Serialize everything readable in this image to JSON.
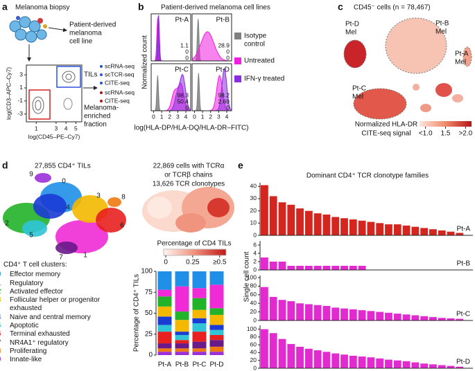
{
  "panels": {
    "a": {
      "letter": "a",
      "title": "Melanoma biopsy",
      "cell_line": [
        "Patient-derived",
        "melanoma",
        "cell line"
      ],
      "flow": {
        "ylabel": "log(CD3–APC–Cy7)",
        "xlabel": "log(CD45–PE–Cy7)",
        "xticks": [
          1,
          3,
          4,
          5
        ],
        "yticks": [
          -3,
          -1,
          1,
          3
        ],
        "xlim": [
          0,
          5.6
        ],
        "ylim": [
          -4.2,
          4.5
        ]
      },
      "tils": "TILs",
      "tils_assays": [
        "scRNA-seq",
        "scTCR-seq",
        "CITE-seq"
      ],
      "fraction": [
        "Melanoma-",
        "enriched",
        "fraction"
      ],
      "fraction_assays": [
        "scRNA-seq",
        "CITE-seq"
      ]
    },
    "b": {
      "letter": "b",
      "title": "Patient-derived melanoma cell lines",
      "ylabel": "Normalized count",
      "xlabel": "log(HLA-DP/HLA-DQ/HLA-DR–FITC)",
      "xticks": [
        0,
        1,
        2,
        3,
        4
      ],
      "xlim": [
        -0.3,
        4.6
      ],
      "legend": [
        {
          "lines": [
            "Isotype",
            "control"
          ],
          "color": "#808080"
        },
        {
          "lines": [
            "Untreated"
          ],
          "color": "#f01ee0"
        },
        {
          "lines": [
            "IFN-γ treated"
          ],
          "color": "#8b2be2"
        }
      ],
      "samples": [
        {
          "name": "Pt-A",
          "values": [
            1.1,
            0,
            0
          ]
        },
        {
          "name": "Pt-B",
          "values": [
            28.9,
            0,
            0
          ]
        },
        {
          "name": "Pt-C",
          "values": [
            98.3,
            50.4,
            0
          ]
        },
        {
          "name": "Pt-D",
          "values": [
            98.2,
            2.69,
            0
          ]
        }
      ]
    },
    "c": {
      "letter": "c",
      "title": "CD45⁻ cells (n = 78,467)",
      "clusters": [
        [
          "Pt-D",
          "Mel"
        ],
        [
          "Pt-B",
          "Mel"
        ],
        [
          "Pt-A",
          "Mel"
        ],
        [
          "Pt-C",
          "Mel"
        ]
      ],
      "colorbar": {
        "label": [
          "Normalized HLA-DR",
          "CITE-seq signal"
        ],
        "ticks": [
          {
            "value": 1.0,
            "label": "<1.0"
          },
          1.5,
          {
            "value": 2.0,
            "label": ">2.0"
          }
        ],
        "lim": [
          0.85,
          2.15
        ]
      }
    },
    "d": {
      "letter": "d",
      "umap_title": "27,855 CD4⁺ TILs",
      "tcr_text": [
        "22,869 cells with TCRα",
        "or TCRβ chains",
        "13,626 TCR clonotypes"
      ],
      "colorbar": {
        "label": "Percentage of CD4 TILs",
        "ticks": [
          0,
          0.25,
          {
            "value": 0.5,
            "label": "≥0.5"
          }
        ],
        "lim": [
          -0.02,
          0.56
        ]
      },
      "legend_title": "CD4⁺ T cell clusters:"
    },
    "e": {
      "letter": "e",
      "title": "Dominant CD4⁺ TCR clonotype families",
      "ylabel": "Single cell count"
    }
  },
  "chart_data": [
    {
      "type": "stacked_bar",
      "ylabel": "Percentage of CD4⁺ TILs",
      "categories": [
        "Pt-A",
        "Pt-B",
        "Pt-C",
        "Pt-D"
      ],
      "ylim": [
        0,
        100
      ],
      "yticks": [
        0,
        25,
        50,
        75,
        100
      ],
      "series": [
        {
          "id": 0,
          "name": "Effector memory",
          "color": "#1f8fe8",
          "values": [
            22,
            18,
            20,
            16
          ]
        },
        {
          "id": 1,
          "name": "Regulatory",
          "color": "#f02ad6",
          "values": [
            8,
            30,
            12,
            28
          ]
        },
        {
          "id": 2,
          "name": "Activated effector",
          "color": "#22b32a",
          "values": [
            12,
            10,
            14,
            8
          ]
        },
        {
          "id": 3,
          "name": "Follicular helper or progenitor exhausted",
          "color": "#f4b800",
          "values": [
            12,
            14,
            10,
            12
          ]
        },
        {
          "id": 4,
          "name": "Naive and central memory",
          "color": "#1a3bd4",
          "values": [
            10,
            4,
            6,
            6
          ]
        },
        {
          "id": 5,
          "name": "Apoptotic",
          "color": "#30c4d6",
          "values": [
            8,
            6,
            10,
            6
          ]
        },
        {
          "id": 6,
          "name": "Terminal exhausted",
          "color": "#e8201e",
          "values": [
            14,
            4,
            12,
            6
          ]
        },
        {
          "id": 7,
          "name": "NR4A1⁺ regulatory",
          "color": "#6a1a88",
          "values": [
            6,
            6,
            8,
            8
          ]
        },
        {
          "id": 8,
          "name": "Proliferating",
          "color": "#f07a12",
          "values": [
            4,
            4,
            4,
            6
          ]
        },
        {
          "id": 9,
          "name": "Innate-like",
          "color": "#9b30d8",
          "values": [
            4,
            4,
            4,
            4
          ]
        }
      ]
    },
    {
      "type": "bar",
      "name": "Pt-A",
      "color": "#d4261e",
      "ylim": [
        0,
        43
      ],
      "yticks": [
        0,
        10,
        20,
        30,
        40
      ],
      "values": [
        41,
        32,
        27,
        25,
        22,
        20,
        18,
        17,
        15,
        14,
        13,
        12,
        11,
        10,
        9,
        9,
        8,
        7,
        6,
        5,
        4,
        3,
        2
      ]
    },
    {
      "type": "bar",
      "name": "Pt-B",
      "color": "#e22ad0",
      "ylim": [
        0,
        7
      ],
      "yticks": [
        0,
        2,
        4,
        6
      ],
      "values": [
        3,
        2,
        2,
        1,
        1,
        1,
        1,
        1,
        1,
        1,
        1,
        1
      ]
    },
    {
      "type": "bar",
      "name": "Pt-C",
      "color": "#e22ad0",
      "ylim": [
        0,
        105
      ],
      "yticks": [
        0,
        20,
        40,
        60,
        80,
        100
      ],
      "values": [
        78,
        55,
        48,
        45,
        40,
        38,
        36,
        34,
        30,
        28,
        26,
        24,
        22,
        20,
        18,
        16,
        14,
        12,
        10,
        8,
        6,
        5,
        4
      ]
    },
    {
      "type": "bar",
      "name": "Pt-D",
      "color": "#e22ad0",
      "ylim": [
        0,
        110
      ],
      "yticks": [
        0,
        20,
        40,
        60,
        80,
        100
      ],
      "values": [
        100,
        90,
        75,
        62,
        55,
        50,
        46,
        42,
        38,
        35,
        32,
        30,
        28,
        25,
        22,
        20,
        18,
        15,
        12,
        10,
        8,
        6,
        4
      ]
    }
  ]
}
